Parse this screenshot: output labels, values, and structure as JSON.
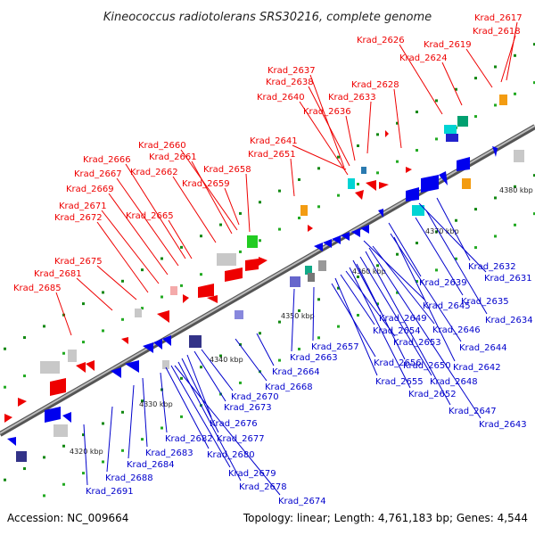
{
  "title": "Kineococcus radiotolerans SRS30216, complete genome",
  "footer": {
    "accession": "Accession: NC_009664",
    "summary": "Topology: linear; Length: 4,761,183 bp; Genes: 4,544"
  },
  "colors": {
    "top_strand_label": "#ee0000",
    "bottom_strand_label": "#0000cc",
    "forward_gene": "#ee0000",
    "reverse_gene": "#0000ee",
    "axis": "#888888"
  },
  "ruler_labels": [
    "4320 kbp",
    "4330 kbp",
    "4340 kbp",
    "4350 kbp",
    "4360 kbp",
    "4370 kbp",
    "4380 kbp"
  ],
  "top_labels": [
    "Krad_2617",
    "Krad_2618",
    "Krad_2619",
    "Krad_2624",
    "Krad_2626",
    "Krad_2628",
    "Krad_2633",
    "Krad_2636",
    "Krad_2637",
    "Krad_2638",
    "Krad_2640",
    "Krad_2641",
    "Krad_2651",
    "Krad_2658",
    "Krad_2659",
    "Krad_2660",
    "Krad_2661",
    "Krad_2662",
    "Krad_2665",
    "Krad_2666",
    "Krad_2667",
    "Krad_2669",
    "Krad_2671",
    "Krad_2672",
    "Krad_2675",
    "Krad_2681",
    "Krad_2685"
  ],
  "bottom_labels": [
    "Krad_2631",
    "Krad_2632",
    "Krad_2634",
    "Krad_2635",
    "Krad_2639",
    "Krad_2642",
    "Krad_2643",
    "Krad_2644",
    "Krad_2645",
    "Krad_2646",
    "Krad_2647",
    "Krad_2648",
    "Krad_2649",
    "Krad_2650",
    "Krad_2652",
    "Krad_2653",
    "Krad_2654",
    "Krad_2655",
    "Krad_2656",
    "Krad_2657",
    "Krad_2663",
    "Krad_2664",
    "Krad_2668",
    "Krad_2670",
    "Krad_2673",
    "Krad_2674",
    "Krad_2676",
    "Krad_2677",
    "Krad_2678",
    "Krad_2679",
    "Krad_2680",
    "Krad_2682",
    "Krad_2683",
    "Krad_2684",
    "Krad_2688",
    "Krad_2691"
  ]
}
